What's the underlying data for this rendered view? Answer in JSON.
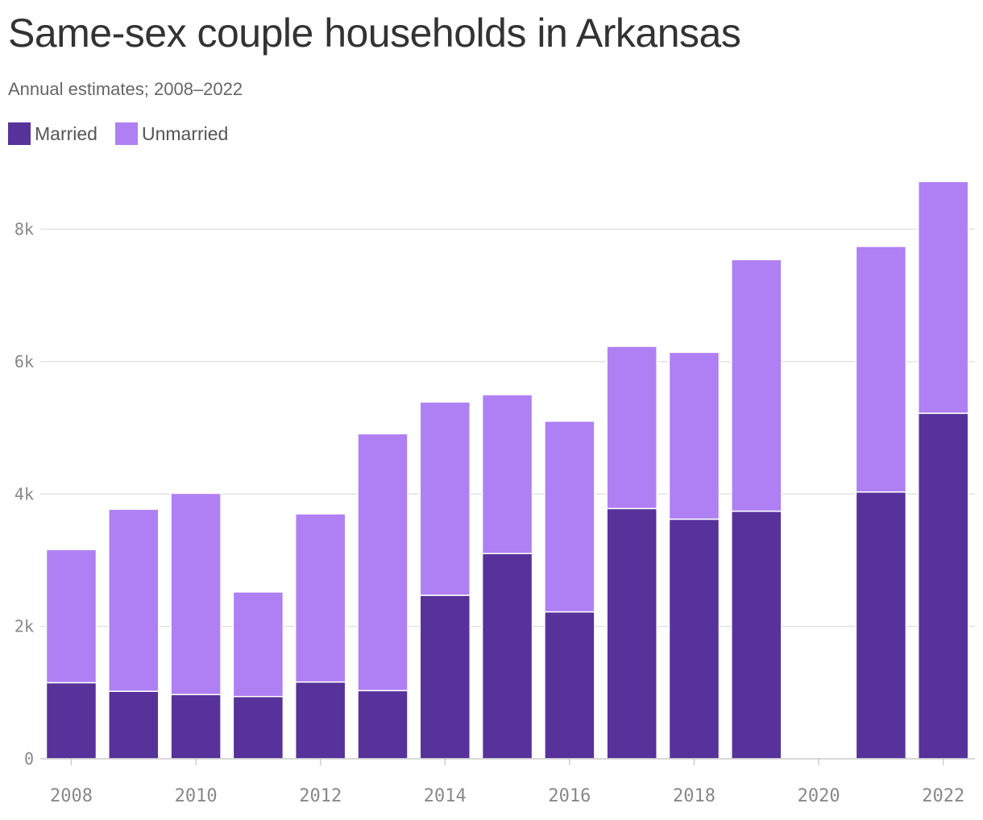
{
  "chart_data": {
    "type": "bar",
    "stacked": true,
    "title": "Same-sex couple households in Arkansas",
    "subtitle": "Annual estimates; 2008–2022",
    "xlabel": "",
    "ylabel": "",
    "categories": [
      "2008",
      "2009",
      "2010",
      "2011",
      "2012",
      "2013",
      "2014",
      "2015",
      "2016",
      "2017",
      "2018",
      "2019",
      "2020",
      "2021",
      "2022"
    ],
    "series": [
      {
        "name": "Married",
        "color": "#56329a",
        "values": [
          1150,
          1020,
          970,
          940,
          1160,
          1030,
          2470,
          3100,
          2220,
          3780,
          3620,
          3740,
          null,
          4030,
          5220
        ]
      },
      {
        "name": "Unmarried",
        "color": "#af80f3",
        "values": [
          2010,
          2750,
          3040,
          1580,
          2540,
          3880,
          2920,
          2400,
          2880,
          2450,
          2520,
          3800,
          null,
          3710,
          3500
        ]
      }
    ],
    "ylim": [
      0,
      8700
    ],
    "yticks": [
      {
        "value": 0,
        "label": "0"
      },
      {
        "value": 2000,
        "label": "2k"
      },
      {
        "value": 4000,
        "label": "4k"
      },
      {
        "value": 6000,
        "label": "6k"
      },
      {
        "value": 8000,
        "label": "8k"
      }
    ],
    "xticks": [
      "2008",
      "2010",
      "2012",
      "2014",
      "2016",
      "2018",
      "2020",
      "2022"
    ],
    "grid": true,
    "legend_position": "top-left"
  }
}
